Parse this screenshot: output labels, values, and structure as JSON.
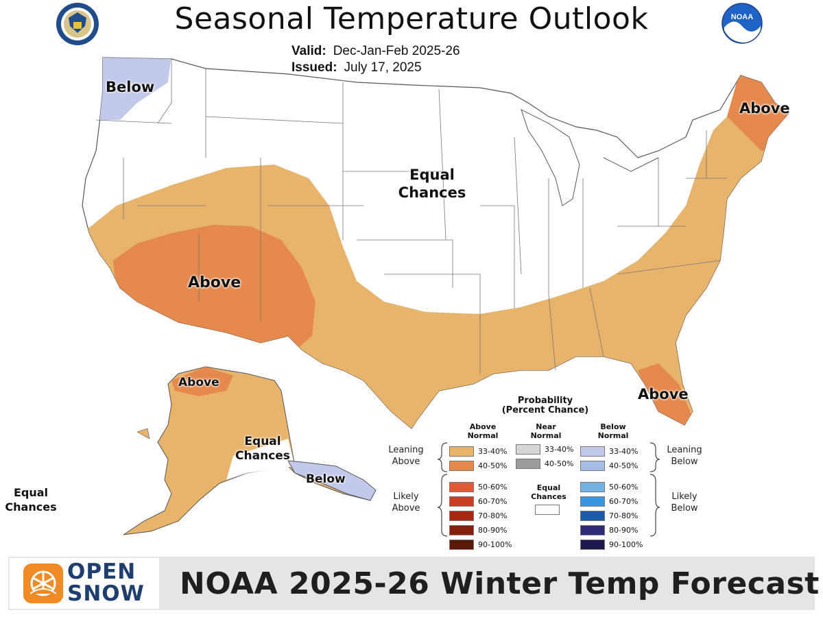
{
  "header": {
    "title": "Seasonal Temperature Outlook",
    "valid_label": "Valid:",
    "valid_value": "Dec-Jan-Feb 2025-26",
    "issued_label": "Issued:",
    "issued_value": "July 17, 2025",
    "left_logo": "department-of-commerce-seal",
    "right_logo": "NOAA"
  },
  "regions": {
    "pacific_nw": "Below",
    "northeast": "Above",
    "central": [
      "Equal",
      "Chances"
    ],
    "southwest": "Above",
    "florida": "Above",
    "alaska_north": "Above",
    "alaska_south": [
      "Equal",
      "Chances"
    ],
    "alaska_panhandle": "Below",
    "hawaii": [
      "Equal",
      "Chances"
    ]
  },
  "legend": {
    "title": [
      "Probability",
      "(Percent Chance)"
    ],
    "above_header": [
      "Above",
      "Normal"
    ],
    "near_header": [
      "Near",
      "Normal"
    ],
    "below_header": [
      "Below",
      "Normal"
    ],
    "equal_header": [
      "Equal",
      "Chances"
    ],
    "leaning_above": [
      "Leaning",
      "Above"
    ],
    "likely_above": [
      "Likely",
      "Above"
    ],
    "leaning_below": [
      "Leaning",
      "Below"
    ],
    "likely_below": [
      "Likely",
      "Below"
    ],
    "above": [
      {
        "label": "33-40%",
        "color": "#e8b46c"
      },
      {
        "label": "40-50%",
        "color": "#e5894c"
      },
      {
        "label": "50-60%",
        "color": "#e05a35"
      },
      {
        "label": "60-70%",
        "color": "#c93e24"
      },
      {
        "label": "70-80%",
        "color": "#a82a14"
      },
      {
        "label": "80-90%",
        "color": "#82200c"
      },
      {
        "label": "90-100%",
        "color": "#5a1a08"
      }
    ],
    "near": [
      {
        "label": "33-40%",
        "color": "#d6d6d6"
      },
      {
        "label": "40-50%",
        "color": "#9c9c9c"
      }
    ],
    "below": [
      {
        "label": "33-40%",
        "color": "#c2c9ea"
      },
      {
        "label": "40-50%",
        "color": "#a3bde6"
      },
      {
        "label": "50-60%",
        "color": "#74b2e6"
      },
      {
        "label": "60-70%",
        "color": "#3a96de"
      },
      {
        "label": "70-80%",
        "color": "#1a5aa6"
      },
      {
        "label": "80-90%",
        "color": "#2e2a7a"
      },
      {
        "label": "90-100%",
        "color": "#1e1a4e"
      }
    ]
  },
  "banner": {
    "brand_line1": "OPEN",
    "brand_line2": "SNOW",
    "brand_icon": "openSnow-icon",
    "title": "NOAA 2025-26 Winter Temp Forecast"
  }
}
